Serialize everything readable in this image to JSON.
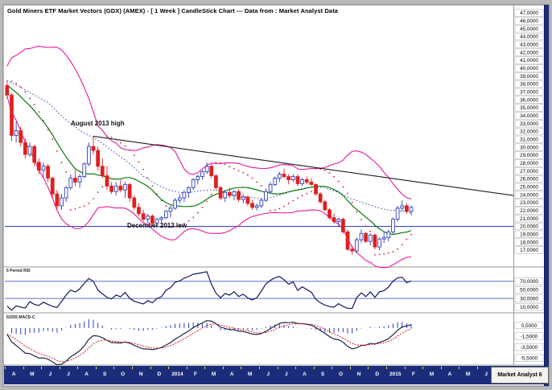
{
  "title": "Gold Miners ETF Market Vectors (GDX) (AMEX) -  [ 1 Week ] CandleStick Chart --- Data from : Market Analyst Data",
  "branding": "Market Analyst 6",
  "annotations": {
    "high": "August 2013 high",
    "low": "December 2013 low"
  },
  "colors": {
    "up": "#2e3fbe",
    "down": "#e01f1f",
    "band": "#e8189e",
    "ma_mid": "#0a7a0a",
    "ma_slow": "#2e3fbe",
    "sar": "#cc2020",
    "support": "#2e3fbe",
    "trend": "#1c1c1c",
    "rsi": "#121a5e",
    "hist": "#2e3fbe",
    "macd": "#10123a",
    "signal": "#cc2020",
    "axis_bg": "#1b2d7a",
    "label_box": "#ffffff",
    "label_border": "#a8a8a8"
  },
  "chart_data": {
    "type": "candlestick",
    "title": "Gold Miners ETF Market Vectors (GDX) (AMEX) - [ 1 Week ] CandleStick Chart",
    "ylim": [
      15.0,
      47.3
    ],
    "y_tick_labels": [
      "47,0000",
      "46,0000",
      "45,0000",
      "44,0000",
      "43,0000",
      "42,0000",
      "41,0000",
      "40,0000",
      "39,0000",
      "38,0000",
      "37,0000",
      "36,0000",
      "35,0000",
      "34,0000",
      "33,0000",
      "32,0000",
      "31,0000",
      "30,0000",
      "29,0000",
      "28,0000",
      "27,0000",
      "26,0000",
      "25,0000",
      "24,0000",
      "23,0000",
      "22,0000",
      "21,0000",
      "20,0000",
      "19,0000",
      "18,0000",
      "17,0000"
    ],
    "x_tick_labels": [
      "A",
      "M",
      "J",
      "J",
      "A",
      "S",
      "O",
      "N",
      "D",
      "2014",
      "F",
      "M",
      "A",
      "M",
      "J",
      "J",
      "A",
      "S",
      "O",
      "N",
      "D",
      "2015",
      "F",
      "M",
      "A",
      "M",
      "J",
      "J"
    ],
    "weeks_per_month": 4,
    "weeks_total": 112,
    "candles": [
      [
        37.8,
        38.4,
        36.2,
        36.6
      ],
      [
        36.6,
        36.9,
        30.8,
        31.5
      ],
      [
        31.5,
        33.2,
        30.6,
        32.1
      ],
      [
        32.1,
        32.6,
        30.1,
        30.6
      ],
      [
        30.6,
        31.1,
        28.6,
        29.1
      ],
      [
        29.1,
        30.6,
        28.8,
        30.1
      ],
      [
        30.1,
        30.3,
        27.6,
        28.1
      ],
      [
        28.1,
        28.6,
        26.6,
        27.1
      ],
      [
        27.1,
        28.1,
        26.1,
        27.6
      ],
      [
        27.6,
        27.9,
        25.6,
        26.1
      ],
      [
        26.1,
        26.3,
        23.6,
        24.1
      ],
      [
        24.1,
        24.6,
        22.2,
        22.6
      ],
      [
        22.6,
        24.1,
        22.1,
        23.6
      ],
      [
        23.6,
        25.1,
        23.1,
        24.9
      ],
      [
        24.9,
        26.6,
        24.6,
        26.1
      ],
      [
        26.1,
        27.1,
        25.1,
        25.6
      ],
      [
        25.6,
        26.6,
        24.9,
        26.3
      ],
      [
        26.3,
        28.1,
        26.1,
        27.9
      ],
      [
        27.9,
        30.6,
        27.6,
        30.1
      ],
      [
        30.1,
        31.4,
        29.1,
        29.6
      ],
      [
        29.6,
        30.1,
        27.1,
        27.6
      ],
      [
        27.6,
        28.6,
        26.1,
        26.4
      ],
      [
        26.4,
        27.6,
        24.6,
        25.1
      ],
      [
        25.1,
        25.6,
        24.1,
        24.4
      ],
      [
        24.4,
        25.6,
        23.9,
        25.1
      ],
      [
        25.1,
        25.9,
        24.3,
        24.6
      ],
      [
        24.6,
        25.6,
        23.6,
        25.3
      ],
      [
        25.3,
        25.5,
        23.1,
        23.6
      ],
      [
        23.6,
        23.9,
        22.1,
        22.4
      ],
      [
        22.4,
        22.9,
        21.3,
        21.6
      ],
      [
        21.6,
        22.1,
        20.6,
        20.9
      ],
      [
        20.9,
        21.6,
        20.4,
        21.3
      ],
      [
        21.3,
        21.5,
        20.1,
        20.4
      ],
      [
        20.4,
        21.1,
        19.9,
        20.9
      ],
      [
        20.9,
        21.3,
        20.3,
        21.1
      ],
      [
        21.1,
        22.1,
        20.9,
        21.9
      ],
      [
        21.9,
        22.6,
        21.1,
        22.3
      ],
      [
        22.3,
        23.6,
        22.1,
        23.3
      ],
      [
        23.3,
        24.1,
        22.9,
        23.6
      ],
      [
        23.6,
        24.6,
        23.1,
        24.3
      ],
      [
        24.3,
        25.1,
        23.6,
        24.9
      ],
      [
        24.9,
        26.1,
        24.6,
        25.9
      ],
      [
        25.9,
        26.6,
        25.3,
        26.3
      ],
      [
        26.3,
        27.1,
        25.9,
        26.9
      ],
      [
        26.9,
        28.1,
        26.6,
        27.6
      ],
      [
        27.6,
        27.9,
        26.1,
        26.4
      ],
      [
        26.4,
        26.6,
        24.6,
        24.9
      ],
      [
        24.9,
        25.1,
        23.3,
        23.6
      ],
      [
        23.6,
        24.6,
        23.1,
        24.3
      ],
      [
        24.3,
        24.9,
        23.6,
        23.9
      ],
      [
        23.9,
        24.6,
        23.3,
        24.4
      ],
      [
        24.4,
        24.7,
        23.1,
        23.4
      ],
      [
        23.4,
        24.1,
        22.9,
        23.7
      ],
      [
        23.7,
        23.9,
        22.6,
        22.9
      ],
      [
        22.9,
        23.3,
        22.1,
        22.4
      ],
      [
        22.4,
        22.9,
        22.0,
        22.6
      ],
      [
        22.6,
        23.6,
        22.3,
        23.3
      ],
      [
        23.3,
        24.6,
        23.1,
        24.4
      ],
      [
        24.4,
        25.6,
        24.1,
        25.3
      ],
      [
        25.3,
        26.3,
        25.1,
        26.1
      ],
      [
        26.1,
        26.9,
        25.6,
        26.6
      ],
      [
        26.6,
        27.3,
        26.1,
        26.3
      ],
      [
        26.3,
        26.6,
        25.3,
        25.9
      ],
      [
        25.9,
        26.6,
        25.6,
        26.3
      ],
      [
        26.3,
        26.6,
        25.1,
        25.4
      ],
      [
        25.4,
        26.1,
        25.1,
        25.9
      ],
      [
        25.9,
        26.3,
        25.3,
        25.6
      ],
      [
        25.6,
        26.1,
        25.1,
        25.3
      ],
      [
        25.3,
        25.4,
        23.9,
        24.1
      ],
      [
        24.1,
        24.3,
        22.9,
        23.1
      ],
      [
        23.1,
        23.3,
        21.9,
        22.1
      ],
      [
        22.1,
        22.3,
        20.9,
        21.1
      ],
      [
        21.1,
        21.6,
        20.3,
        20.6
      ],
      [
        20.6,
        21.1,
        19.9,
        20.9
      ],
      [
        20.9,
        21.1,
        19.1,
        19.3
      ],
      [
        19.3,
        19.6,
        16.9,
        17.1
      ],
      [
        17.1,
        17.6,
        16.4,
        16.9
      ],
      [
        16.9,
        18.6,
        16.6,
        18.3
      ],
      [
        18.3,
        19.6,
        17.9,
        19.1
      ],
      [
        19.1,
        19.3,
        17.9,
        18.1
      ],
      [
        18.1,
        19.1,
        17.6,
        18.9
      ],
      [
        18.9,
        19.1,
        17.1,
        17.4
      ],
      [
        17.4,
        18.6,
        17.0,
        18.4
      ],
      [
        18.4,
        19.3,
        17.9,
        18.6
      ],
      [
        18.6,
        19.6,
        18.1,
        19.3
      ],
      [
        19.3,
        21.1,
        19.1,
        20.9
      ],
      [
        20.9,
        22.6,
        20.6,
        22.3
      ],
      [
        22.3,
        23.3,
        21.9,
        22.6
      ],
      [
        22.6,
        22.9,
        21.6,
        21.9
      ],
      [
        21.9,
        22.6,
        21.4,
        22.4
      ]
    ],
    "warmup_closes": [
      40.5,
      40.2,
      40.0,
      39.8,
      39.5,
      39.2,
      39.0,
      38.8,
      38.5,
      38.2,
      38.0,
      37.9,
      37.8,
      37.7,
      37.6,
      37.5,
      37.5,
      37.6,
      37.7,
      37.8
    ],
    "overlays": {
      "bollinger": {
        "period": 20,
        "stdev": 2
      },
      "sma_mid_period": 15,
      "sma_slow_period": 30,
      "parabolic_sar": {
        "af": 0.02,
        "af_max": 0.2
      },
      "support_price": 20.0,
      "trendline": {
        "from_week": 19,
        "from_price": 31.4,
        "to_price": 23.9
      }
    },
    "rsi_panel": {
      "label": "5 Period RSI",
      "period": 5,
      "guides": [
        70,
        30
      ],
      "ylim": [
        0,
        100
      ],
      "tick_labels": [
        "70,0000",
        "50,0000",
        "30,0000",
        "10,0000"
      ]
    },
    "macd_panel": {
      "label": "5/25/5 MACD-C",
      "fast": 5,
      "slow": 25,
      "signal": 5,
      "ylim": [
        -6.5,
        2.5
      ],
      "tick_labels": [
        "0,5000",
        "-1,5000",
        "-3,5000",
        "-5,5000"
      ]
    }
  }
}
